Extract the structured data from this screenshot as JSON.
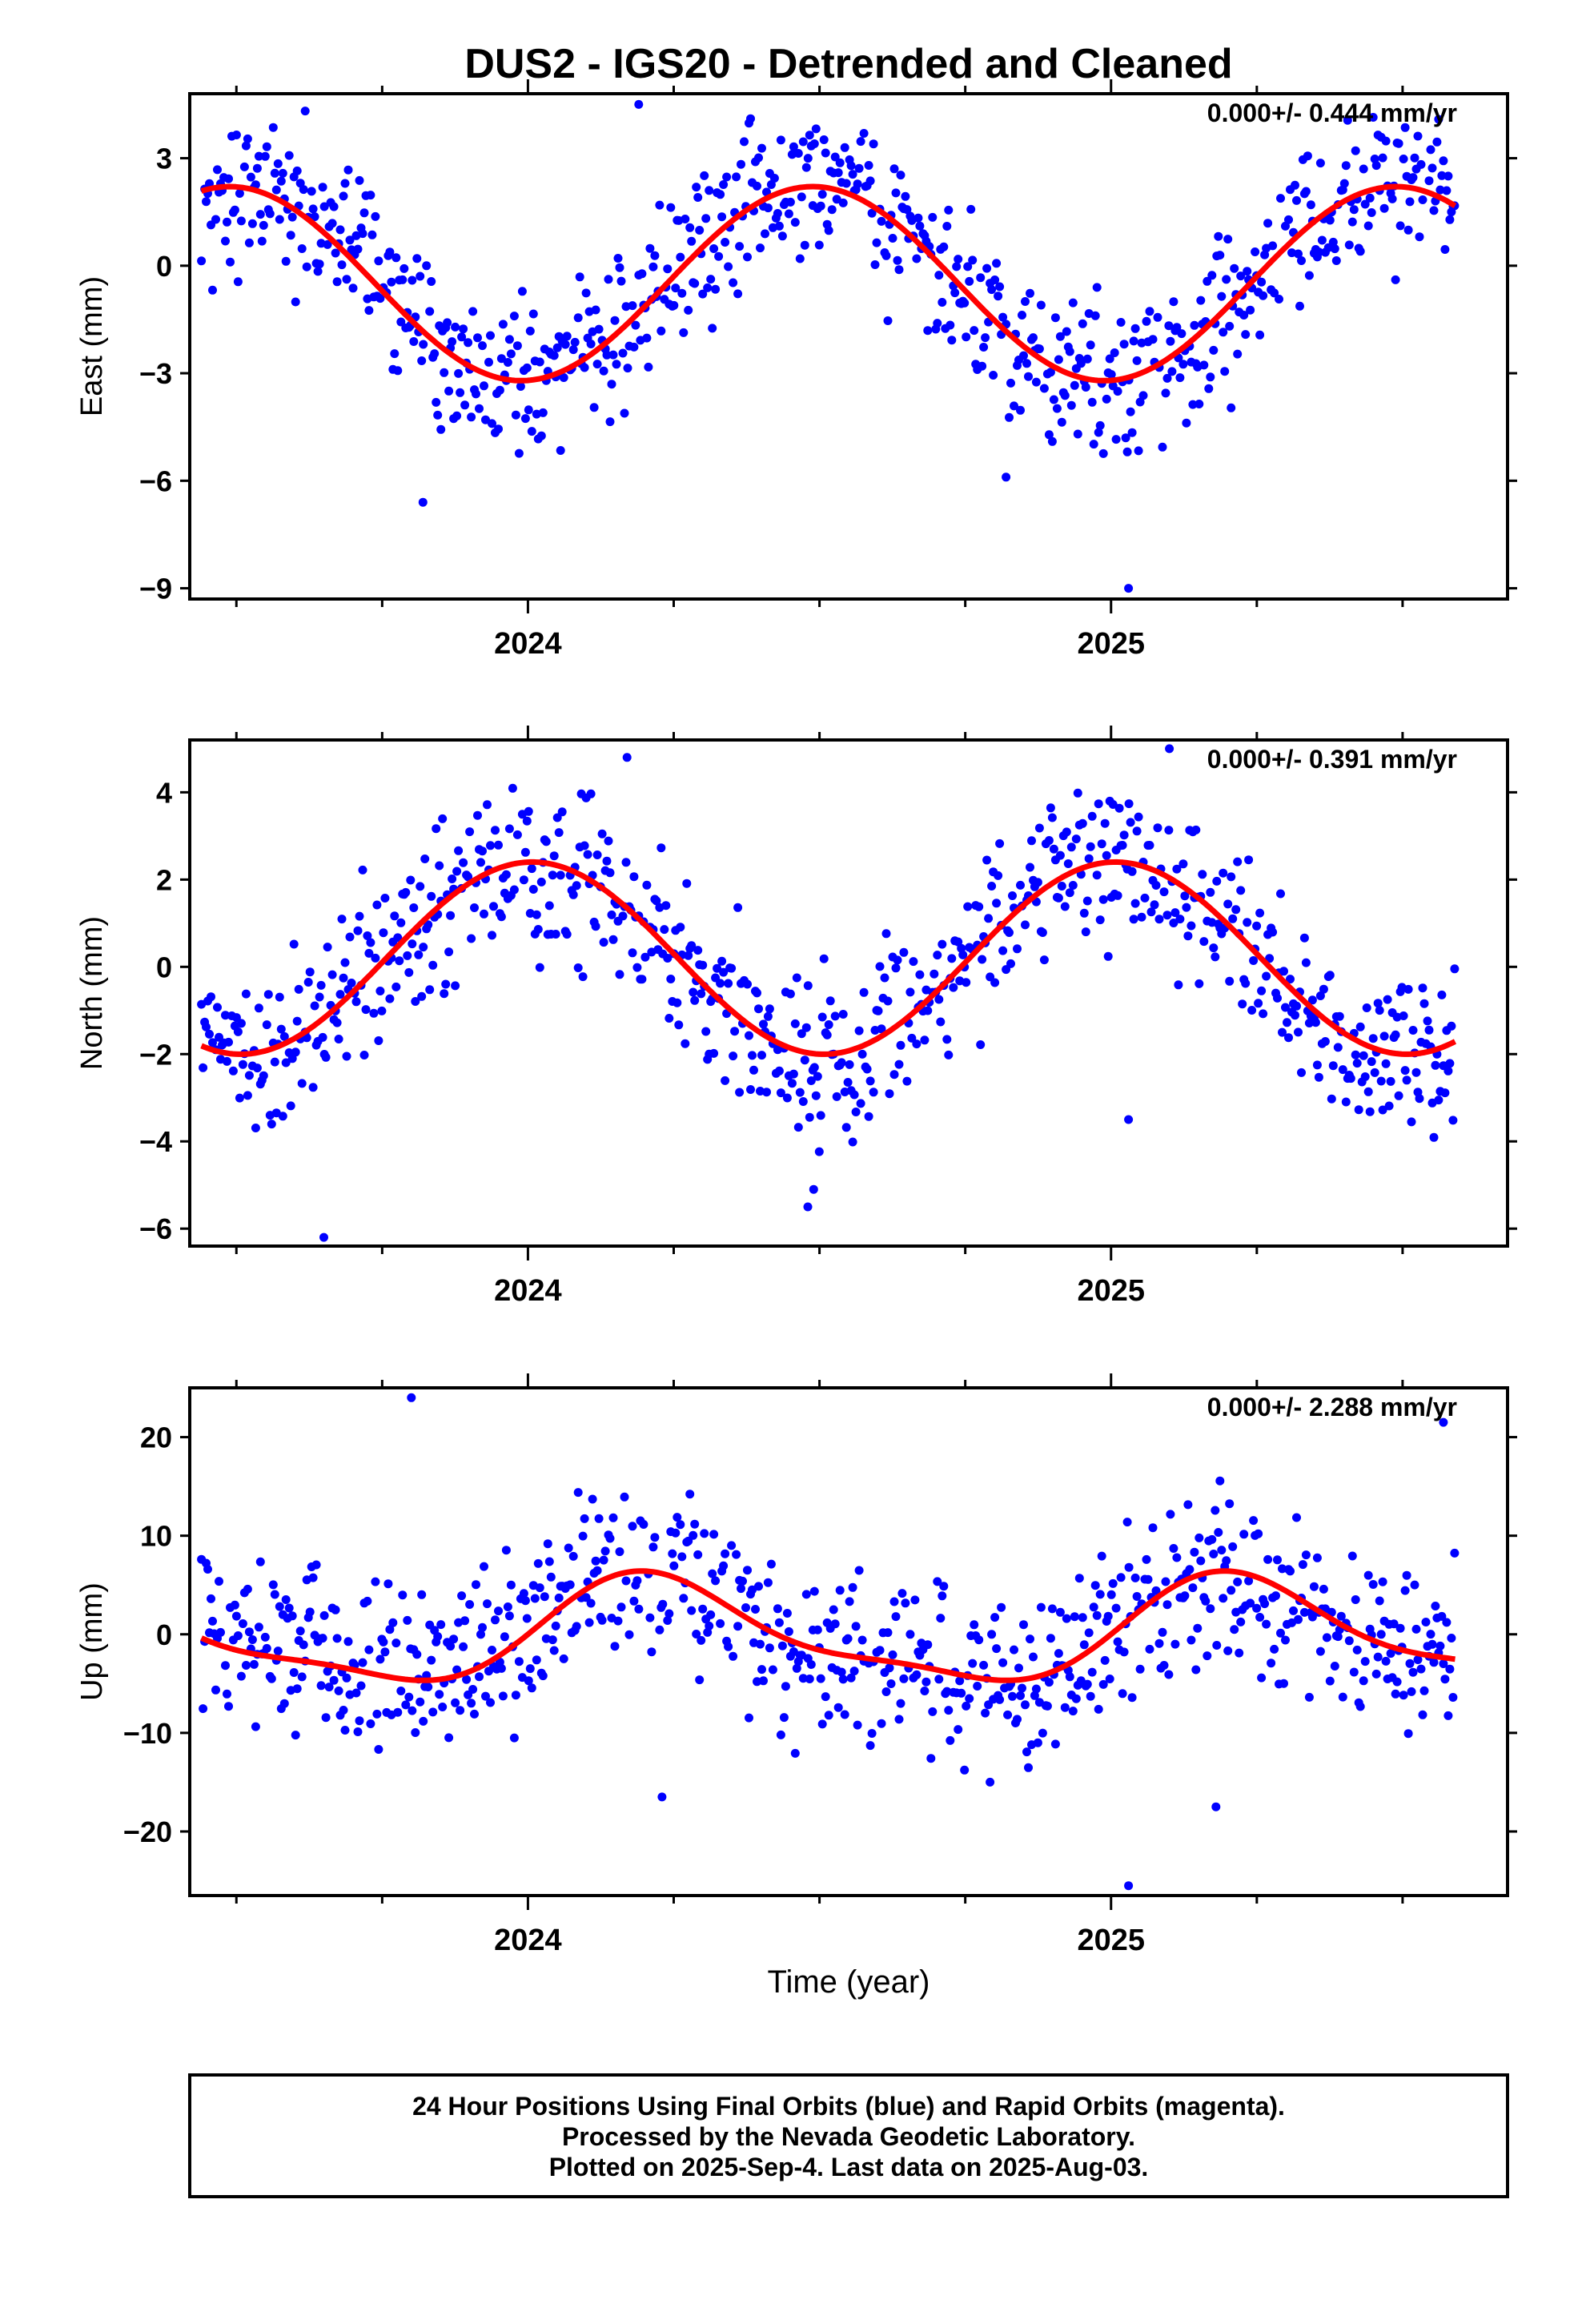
{
  "chart_data": {
    "title": "DUS2 - IGS20 - Detrended and Cleaned",
    "type": "scatter",
    "x_range": [
      2023.42,
      2025.68
    ],
    "x_ticks": [
      2024,
      2025
    ],
    "xlabel": "Time (year)",
    "series_colors": {
      "final": "#0000ff",
      "rapid": "#ff00ff",
      "model": "#ff0000"
    },
    "panels": [
      {
        "key": "east",
        "ylabel": "East (mm)",
        "ylim": [
          -9.3,
          4.8
        ],
        "y_ticks": [
          3,
          0,
          -3,
          -6,
          -9
        ],
        "y_tick_labels": [
          "3",
          "0",
          "−3",
          "−6",
          "−9"
        ],
        "rate": "0.000+/- 0.444 mm/yr",
        "model": {
          "offset": -0.5,
          "a1": -2.7,
          "b1": 0.2,
          "a2": 0.0,
          "b2": 0.0
        },
        "noise": 1.05,
        "outliers": [
          [
            2023.82,
            -6.6
          ],
          [
            2025.03,
            -9.0
          ],
          [
            2024.82,
            -5.9
          ],
          [
            2024.19,
            4.5
          ]
        ]
      },
      {
        "key": "north",
        "ylabel": "North (mm)",
        "ylim": [
          -6.4,
          5.2
        ],
        "y_ticks": [
          4,
          2,
          0,
          -2,
          -4,
          -6
        ],
        "y_tick_labels": [
          "4",
          "2",
          "0",
          "−2",
          "−4",
          "−6"
        ],
        "rate": "0.000+/- 0.391 mm/yr",
        "model": {
          "offset": 0.2,
          "a1": 2.2,
          "b1": 0.1,
          "a2": 0.0,
          "b2": 0.0
        },
        "noise": 0.95,
        "outliers": [
          [
            2023.65,
            -6.2
          ],
          [
            2024.48,
            -5.5
          ],
          [
            2024.49,
            -5.1
          ],
          [
            2025.03,
            -3.5
          ],
          [
            2025.1,
            5.0
          ],
          [
            2024.17,
            4.8
          ]
        ]
      },
      {
        "key": "up",
        "ylabel": "Up (mm)",
        "ylim": [
          -26.5,
          25.0
        ],
        "y_ticks": [
          20,
          10,
          0,
          -10,
          -20
        ],
        "y_tick_labels": [
          "20",
          "10",
          "0",
          "−10",
          "−20"
        ],
        "rate": "0.000+/- 2.288 mm/yr",
        "model": {
          "offset": 0.0,
          "a1": 0.8,
          "b1": 5.0,
          "a2": -0.8,
          "b2": 1.3
        },
        "noise": 4.3,
        "outliers": [
          [
            2023.8,
            24.0
          ],
          [
            2025.03,
            -25.5
          ],
          [
            2025.18,
            -17.5
          ],
          [
            2024.23,
            -16.5
          ],
          [
            2025.57,
            21.5
          ]
        ]
      }
    ]
  },
  "caption": {
    "line1": "24 Hour Positions Using Final Orbits (blue) and Rapid Orbits (magenta).",
    "line2": "Processed by the Nevada Geodetic Laboratory.",
    "line3": "Plotted on 2025-Sep-4. Last data on 2025-Aug-03."
  }
}
